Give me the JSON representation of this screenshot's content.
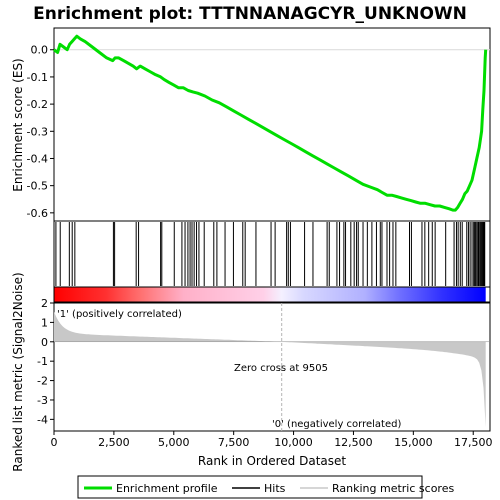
{
  "chart_data": {
    "type": "line",
    "title": "Enrichment plot: TTTNNANAGCYR_UNKNOWN",
    "xlabel": "Rank in Ordered Dataset",
    "ylabel_top": "Enrichment score (ES)",
    "ylabel_bottom": "Ranked list metric (Signal2Noise)",
    "xlim": [
      0,
      18200
    ],
    "ylim_top": [
      -0.63,
      0.08
    ],
    "ylim_bottom": [
      -4.6,
      2.0
    ],
    "x_ticks": [
      0,
      2500,
      5000,
      7500,
      10000,
      12500,
      15000,
      17500
    ],
    "x_tick_labels": [
      "0",
      "2,500",
      "5,000",
      "7,500",
      "10,000",
      "12,500",
      "15,000",
      "17,500"
    ],
    "y_ticks_top": [
      0.0,
      -0.1,
      -0.2,
      -0.3,
      -0.4,
      -0.5,
      -0.6
    ],
    "y_tick_labels_top": [
      "0.0",
      "-0.1",
      "-0.2",
      "-0.3",
      "-0.4",
      "-0.5",
      "-0.6"
    ],
    "y_ticks_bottom": [
      2,
      1,
      0,
      -1,
      -2,
      -3,
      -4
    ],
    "y_tick_labels_bottom": [
      "2",
      "1",
      "0",
      "-1",
      "-2",
      "-3",
      "-4"
    ],
    "zero_cross_rank": 9505,
    "annotations": {
      "zero_cross": "Zero cross at 9505",
      "positive": "'1' (positively correlated)",
      "negative": "'0' (negatively correlated)"
    },
    "legend": {
      "placement": "bottom",
      "entries": [
        "Enrichment profile",
        "Hits",
        "Ranking metric scores"
      ]
    },
    "colors": {
      "profile": "#00dd00",
      "hits": "#000000",
      "metric_fill": "#c8c8c8",
      "zero_line": "#b4b4b4",
      "positive_band": "#ff0000",
      "negative_band": "#0000ff",
      "title_text": "#000000",
      "positive_label": "#cc0000",
      "negative_label": "#0000cc"
    },
    "series": [
      {
        "name": "Enrichment profile",
        "x": [
          0,
          150,
          250,
          400,
          550,
          650,
          750,
          850,
          950,
          1100,
          1300,
          1600,
          1900,
          2200,
          2450,
          2550,
          2700,
          2900,
          3100,
          3300,
          3450,
          3600,
          3800,
          4000,
          4200,
          4450,
          4600,
          4800,
          5000,
          5200,
          5400,
          5600,
          5800,
          6000,
          6300,
          6600,
          6900,
          7200,
          7500,
          7800,
          8100,
          8400,
          8700,
          9000,
          9300,
          9600,
          9900,
          10200,
          10500,
          10800,
          11100,
          11400,
          11700,
          12000,
          12300,
          12600,
          12900,
          13200,
          13500,
          13700,
          13900,
          14100,
          14300,
          14500,
          14700,
          14900,
          15100,
          15300,
          15500,
          15700,
          15900,
          16100,
          16300,
          16500,
          16650,
          16750,
          16850,
          16950,
          17050,
          17150,
          17250,
          17350,
          17450,
          17550,
          17650,
          17750,
          17850,
          17900,
          17950,
          17980,
          18000,
          18020
        ],
        "values": [
          0.0,
          -0.01,
          0.02,
          0.01,
          0.0,
          0.02,
          0.03,
          0.04,
          0.05,
          0.04,
          0.03,
          0.01,
          -0.01,
          -0.03,
          -0.04,
          -0.03,
          -0.03,
          -0.04,
          -0.05,
          -0.06,
          -0.07,
          -0.06,
          -0.07,
          -0.08,
          -0.09,
          -0.1,
          -0.11,
          -0.12,
          -0.13,
          -0.14,
          -0.14,
          -0.15,
          -0.155,
          -0.16,
          -0.17,
          -0.185,
          -0.195,
          -0.21,
          -0.225,
          -0.24,
          -0.255,
          -0.27,
          -0.285,
          -0.3,
          -0.315,
          -0.33,
          -0.345,
          -0.36,
          -0.375,
          -0.39,
          -0.405,
          -0.42,
          -0.435,
          -0.45,
          -0.465,
          -0.48,
          -0.495,
          -0.505,
          -0.515,
          -0.525,
          -0.535,
          -0.535,
          -0.54,
          -0.545,
          -0.55,
          -0.555,
          -0.56,
          -0.565,
          -0.565,
          -0.57,
          -0.575,
          -0.575,
          -0.58,
          -0.585,
          -0.59,
          -0.59,
          -0.58,
          -0.565,
          -0.55,
          -0.53,
          -0.52,
          -0.5,
          -0.48,
          -0.44,
          -0.4,
          -0.36,
          -0.3,
          -0.22,
          -0.15,
          -0.08,
          -0.03,
          0.0
        ]
      }
    ],
    "hits": [
      80,
      260,
      640,
      760,
      870,
      2480,
      2530,
      3430,
      3530,
      4450,
      4500,
      5020,
      5340,
      5470,
      5590,
      5680,
      5760,
      5850,
      5950,
      6050,
      6270,
      6670,
      6800,
      7140,
      7490,
      7880,
      7980,
      8430,
      9060,
      9230,
      9710,
      9780,
      9870,
      10460,
      10810,
      11400,
      11490,
      11810,
      11920,
      12100,
      12170,
      12390,
      12530,
      12630,
      12700,
      12900,
      13080,
      13270,
      13460,
      13620,
      13690,
      13900,
      14010,
      14150,
      14270,
      14840,
      14920,
      15360,
      15480,
      15640,
      15790,
      15910,
      16350,
      16700,
      16800,
      16870,
      16960,
      17040,
      17230,
      17300,
      17370,
      17450,
      17520,
      17560,
      17600,
      17650,
      17700,
      17740,
      17790,
      17830,
      17870,
      17910,
      17950,
      17980
    ]
  }
}
